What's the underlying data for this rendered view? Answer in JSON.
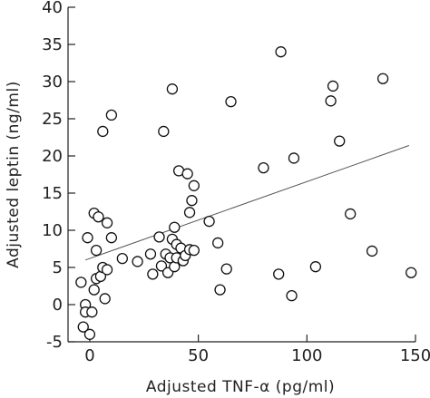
{
  "chart_data": {
    "type": "scatter",
    "title": "",
    "xlabel": "Adjusted TNF-α (pg/ml)",
    "ylabel": "Adjusted leptin (ng/ml)",
    "xlim": [
      -10,
      150
    ],
    "ylim": [
      -5,
      40
    ],
    "x_ticks": [
      0,
      50,
      100,
      150
    ],
    "y_ticks": [
      -5,
      0,
      5,
      10,
      15,
      20,
      25,
      30,
      35,
      40
    ],
    "grid": false,
    "legend": "none",
    "colors": {
      "axis": "#222222",
      "marker_stroke": "#111111",
      "marker_fill": "#ffffff",
      "trendline": "#555555"
    },
    "series": [
      {
        "points": [
          [
            -4,
            3
          ],
          [
            -3,
            -3
          ],
          [
            -2,
            0
          ],
          [
            -2,
            -1
          ],
          [
            -1,
            9
          ],
          [
            0,
            -4
          ],
          [
            1,
            -1
          ],
          [
            2,
            2
          ],
          [
            3,
            3.5
          ],
          [
            2,
            12.3
          ],
          [
            4,
            11.8
          ],
          [
            3,
            7.3
          ],
          [
            5,
            3.8
          ],
          [
            6,
            5
          ],
          [
            6,
            23.3
          ],
          [
            7,
            0.8
          ],
          [
            8,
            4.7
          ],
          [
            8,
            11
          ],
          [
            10,
            25.5
          ],
          [
            10,
            9
          ],
          [
            15,
            6.2
          ],
          [
            22,
            5.8
          ],
          [
            28,
            6.8
          ],
          [
            29,
            4.1
          ],
          [
            32,
            9.1
          ],
          [
            33,
            5.2
          ],
          [
            34,
            23.3
          ],
          [
            35,
            6.8
          ],
          [
            36,
            4.3
          ],
          [
            37,
            6.3
          ],
          [
            38,
            29
          ],
          [
            38,
            8.8
          ],
          [
            39,
            10.4
          ],
          [
            39,
            5.1
          ],
          [
            40,
            8.1
          ],
          [
            40,
            6.3
          ],
          [
            41,
            18
          ],
          [
            42,
            7.6
          ],
          [
            43,
            5.9
          ],
          [
            44,
            6.6
          ],
          [
            45,
            17.6
          ],
          [
            46,
            7.4
          ],
          [
            46,
            12.4
          ],
          [
            47,
            14
          ],
          [
            48,
            16
          ],
          [
            48,
            7.3
          ],
          [
            55,
            11.2
          ],
          [
            59,
            8.3
          ],
          [
            60,
            2
          ],
          [
            63,
            4.8
          ],
          [
            65,
            27.3
          ],
          [
            80,
            18.4
          ],
          [
            87,
            4.1
          ],
          [
            88,
            34
          ],
          [
            93,
            1.2
          ],
          [
            94,
            19.7
          ],
          [
            104,
            5.1
          ],
          [
            111,
            27.4
          ],
          [
            112,
            29.4
          ],
          [
            115,
            22
          ],
          [
            120,
            12.2
          ],
          [
            130,
            7.2
          ],
          [
            135,
            30.4
          ],
          [
            148,
            4.3
          ]
        ]
      }
    ],
    "trendline": {
      "x": [
        -2,
        147
      ],
      "y": [
        6.0,
        21.4
      ]
    }
  }
}
